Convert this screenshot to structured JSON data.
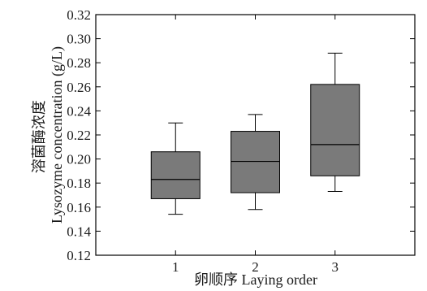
{
  "chart_data": {
    "type": "box",
    "title": "",
    "xlabel": "卵顺序 Laying order",
    "ylabel_cn": "溶菌酶浓度",
    "ylabel_en": "Lysozyme concentration (g/L)",
    "ylim": [
      0.12,
      0.32
    ],
    "yticks": [
      "0.12",
      "0.14",
      "0.16",
      "0.18",
      "0.20",
      "0.22",
      "0.24",
      "0.26",
      "0.28",
      "0.30",
      "0.32"
    ],
    "categories": [
      "1",
      "2",
      "3"
    ],
    "boxes": [
      {
        "category": "1",
        "whisker_low": 0.154,
        "q1": 0.167,
        "median": 0.183,
        "q3": 0.206,
        "whisker_high": 0.23
      },
      {
        "category": "2",
        "whisker_low": 0.158,
        "q1": 0.172,
        "median": 0.198,
        "q3": 0.223,
        "whisker_high": 0.237
      },
      {
        "category": "3",
        "whisker_low": 0.173,
        "q1": 0.186,
        "median": 0.212,
        "q3": 0.262,
        "whisker_high": 0.288
      }
    ],
    "box_color": "#7a7a7a",
    "grid": false,
    "legend": "none"
  }
}
